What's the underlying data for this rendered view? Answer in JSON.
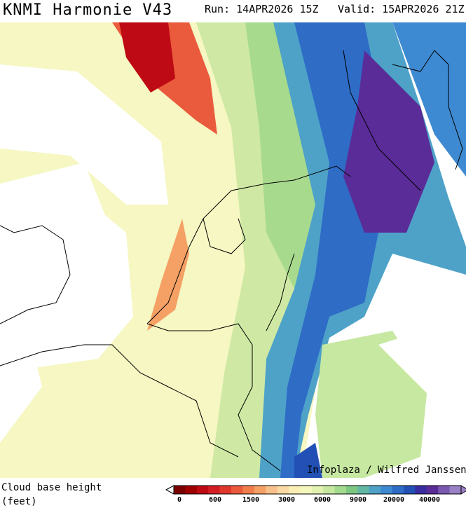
{
  "header": {
    "title": "KNMI Harmonie V43",
    "run": "Run: 14APR2026 15Z",
    "valid": "Valid: 15APR2026 21Z"
  },
  "credit": "Infoplaza / Wilfred Janssen",
  "legend": {
    "title": "Cloud base height",
    "unit": "(feet)",
    "labels": [
      0,
      600,
      1500,
      3000,
      6000,
      9000,
      20000,
      40000
    ],
    "colors": [
      "#7a0000",
      "#9e0000",
      "#be0a14",
      "#d21e23",
      "#e0372d",
      "#ea5a3c",
      "#f07d4b",
      "#f5a064",
      "#f8c08a",
      "#fadaa4",
      "#fbeeb4",
      "#f5f7bc",
      "#e2f2b0",
      "#c6e8a0",
      "#a4da8e",
      "#7cc882",
      "#62b8a2",
      "#4ea2c8",
      "#3e8ad2",
      "#2e6cc6",
      "#2250b4",
      "#3a2ca0",
      "#5a2c98",
      "#7a58b0",
      "#9a80c4"
    ]
  }
}
